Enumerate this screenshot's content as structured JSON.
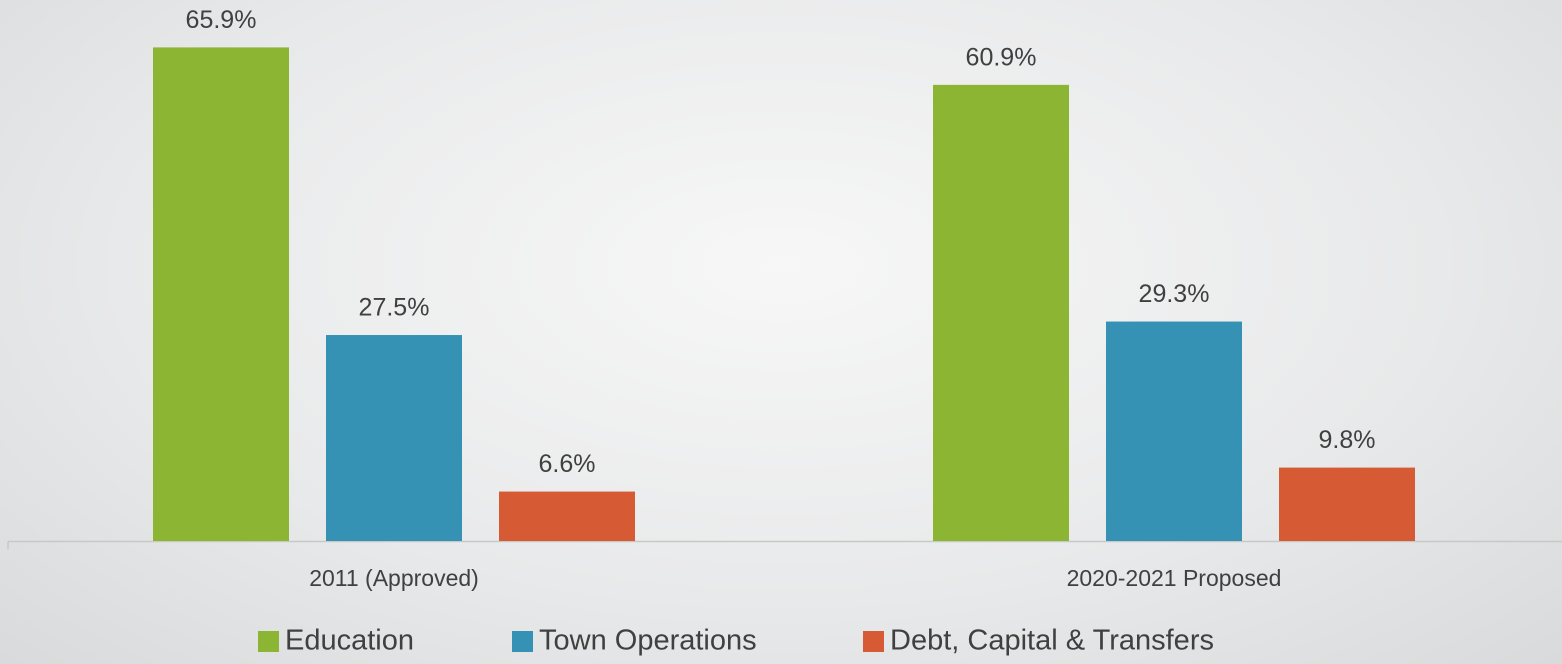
{
  "chart_data": {
    "type": "bar",
    "categories": [
      "2011 (Approved)",
      "2020-2021 Proposed"
    ],
    "series": [
      {
        "name": "Education",
        "color": "#8db534",
        "values": [
          65.9,
          60.9
        ],
        "value_labels": [
          "65.9%",
          "60.9%"
        ]
      },
      {
        "name": "Town Operations",
        "color": "#3592b5",
        "values": [
          27.5,
          29.3
        ],
        "value_labels": [
          "27.5%",
          "29.3%"
        ]
      },
      {
        "name": "Debt, Capital & Transfers",
        "color": "#d65a33",
        "values": [
          6.6,
          9.8
        ],
        "value_labels": [
          "6.6%",
          "9.8%"
        ]
      }
    ],
    "legend": "bottom"
  }
}
